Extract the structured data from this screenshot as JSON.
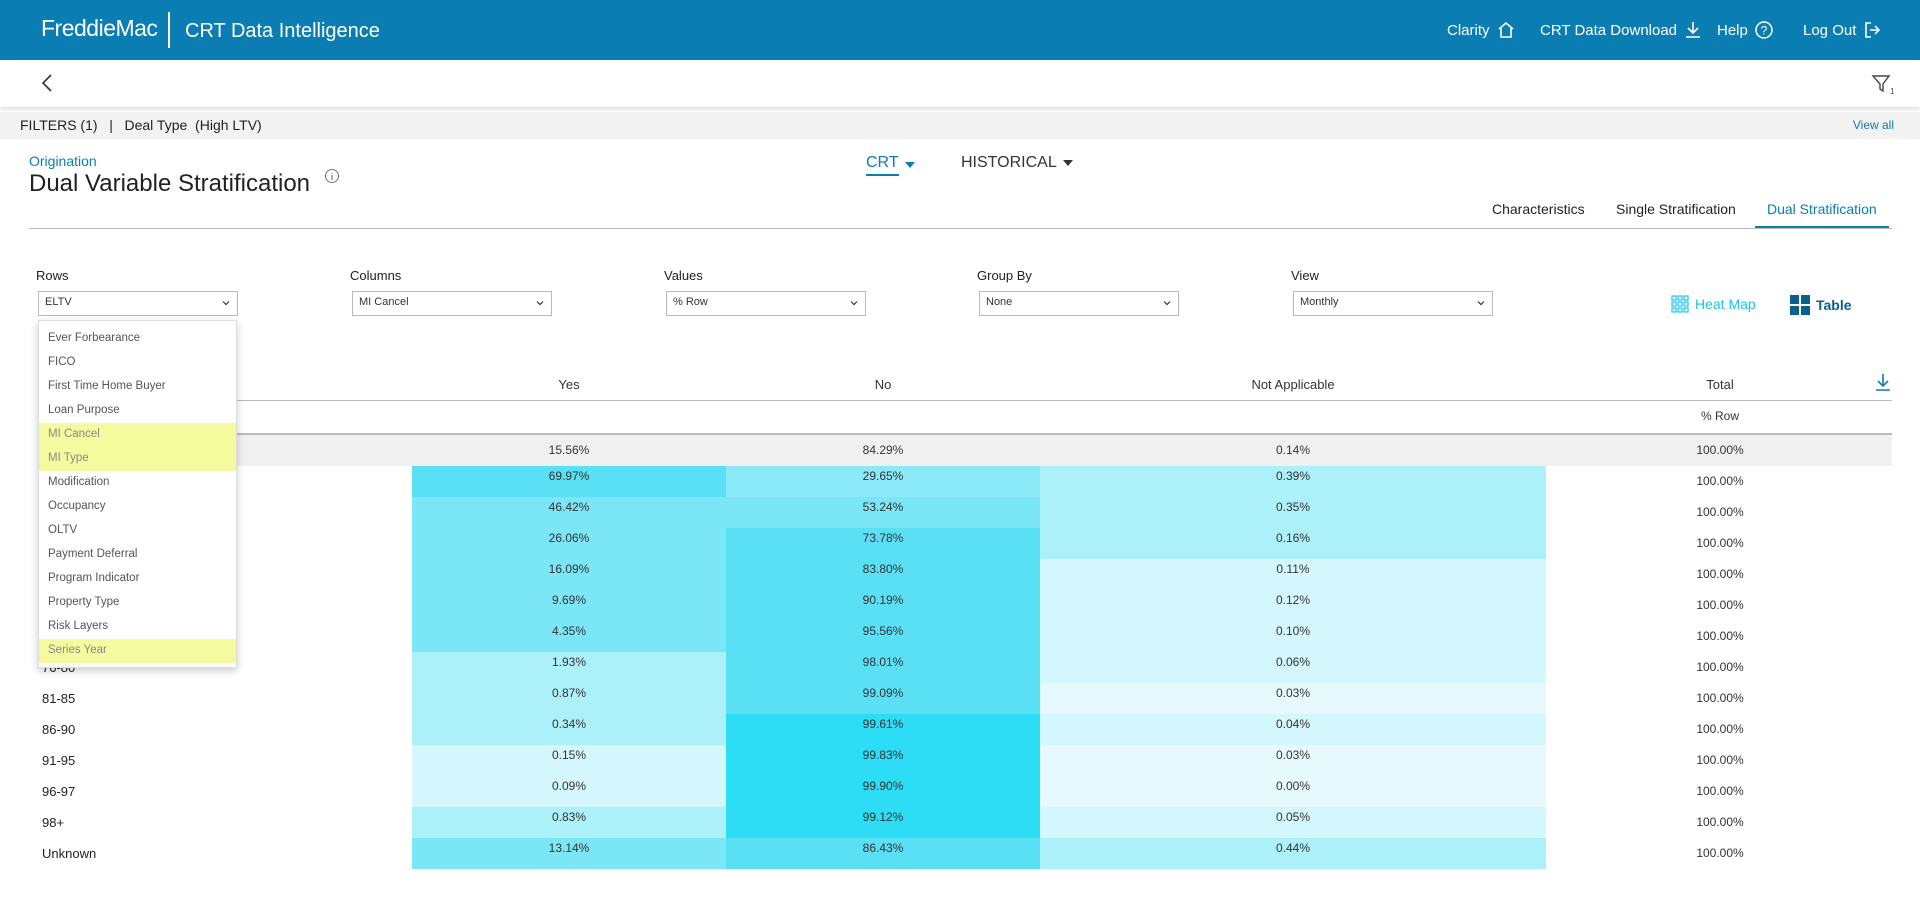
{
  "header": {
    "logo": "FreddieMac",
    "app_title": "CRT Data Intelligence",
    "nav": [
      {
        "label": "Clarity",
        "icon": "home-icon"
      },
      {
        "label": "CRT Data Download",
        "icon": "download-icon"
      },
      {
        "label": "Help",
        "icon": "help-icon"
      },
      {
        "label": "Log Out",
        "icon": "logout-icon"
      }
    ]
  },
  "filters": {
    "summary": "FILTERS (1)   |   Deal Type  (High LTV)",
    "view_all": "View all"
  },
  "page": {
    "breadcrumb": "Origination",
    "title": "Dual Variable Stratification",
    "toggle_crt": "CRT",
    "toggle_historical": "HISTORICAL",
    "tabs": [
      "Characteristics",
      "Single Stratification",
      "Dual Stratification"
    ],
    "active_tab": "Dual Stratification"
  },
  "controls": {
    "rows": {
      "label": "Rows",
      "value": "ELTV"
    },
    "columns": {
      "label": "Columns",
      "value": "MI Cancel"
    },
    "values": {
      "label": "Values",
      "value": "% Row"
    },
    "group_by": {
      "label": "Group By",
      "value": "None"
    },
    "view": {
      "label": "View",
      "value": "Monthly"
    },
    "heat_map_label": "Heat Map",
    "table_label": "Table"
  },
  "dropdown": {
    "items": [
      {
        "label": "Ever Forbearance",
        "highlight": false
      },
      {
        "label": "FICO",
        "highlight": false
      },
      {
        "label": "First Time Home Buyer",
        "highlight": false
      },
      {
        "label": "Loan Purpose",
        "highlight": false
      },
      {
        "label": "MI Cancel",
        "highlight": true
      },
      {
        "label": "MI Type",
        "highlight": true
      },
      {
        "label": "Modification",
        "highlight": false
      },
      {
        "label": "Occupancy",
        "highlight": false
      },
      {
        "label": "OLTV",
        "highlight": false
      },
      {
        "label": "Payment Deferral",
        "highlight": false
      },
      {
        "label": "Program Indicator",
        "highlight": false
      },
      {
        "label": "Property Type",
        "highlight": false
      },
      {
        "label": "Risk Layers",
        "highlight": false
      },
      {
        "label": "Series Year",
        "highlight": true
      }
    ]
  },
  "table": {
    "columns": [
      "Yes",
      "No",
      "Not Applicable",
      "Total"
    ],
    "subheader": "% Row",
    "total_row": {
      "label": "",
      "values": [
        "15.56%",
        "84.29%",
        "0.14%",
        "100.00%"
      ]
    },
    "rows": [
      {
        "label": "",
        "values": [
          "69.97%",
          "29.65%",
          "0.39%",
          "100.00%"
        ],
        "shades": [
          "#5ae0f4",
          "#8aeaf8",
          "#acf1fa"
        ]
      },
      {
        "label": "",
        "values": [
          "46.42%",
          "53.24%",
          "0.35%",
          "100.00%"
        ],
        "shades": [
          "#7be7f6",
          "#7be7f6",
          "#acf1fa"
        ]
      },
      {
        "label": "",
        "values": [
          "26.06%",
          "73.78%",
          "0.16%",
          "100.00%"
        ],
        "shades": [
          "#7be7f6",
          "#5ae0f4",
          "#acf1fa"
        ]
      },
      {
        "label": "",
        "values": [
          "16.09%",
          "83.80%",
          "0.11%",
          "100.00%"
        ],
        "shades": [
          "#7be7f6",
          "#5ae0f4",
          "#d3f7fc"
        ]
      },
      {
        "label": "",
        "values": [
          "9.69%",
          "90.19%",
          "0.12%",
          "100.00%"
        ],
        "shades": [
          "#7be7f6",
          "#5ae0f4",
          "#d3f7fc"
        ]
      },
      {
        "label": "",
        "values": [
          "4.35%",
          "95.56%",
          "0.10%",
          "100.00%"
        ],
        "shades": [
          "#7be7f6",
          "#5ae0f4",
          "#d3f7fc"
        ]
      },
      {
        "label": "76-80",
        "values": [
          "1.93%",
          "98.01%",
          "0.06%",
          "100.00%"
        ],
        "shades": [
          "#acf1fa",
          "#5ae0f4",
          "#d3f7fc"
        ]
      },
      {
        "label": "81-85",
        "values": [
          "0.87%",
          "99.09%",
          "0.03%",
          "100.00%"
        ],
        "shades": [
          "#acf1fa",
          "#5ae0f4",
          "#e6fafd"
        ]
      },
      {
        "label": "86-90",
        "values": [
          "0.34%",
          "99.61%",
          "0.04%",
          "100.00%"
        ],
        "shades": [
          "#acf1fa",
          "#2ddcf5",
          "#d3f7fc"
        ]
      },
      {
        "label": "91-95",
        "values": [
          "0.15%",
          "99.83%",
          "0.03%",
          "100.00%"
        ],
        "shades": [
          "#d3f7fc",
          "#2ddcf5",
          "#e6fafd"
        ]
      },
      {
        "label": "96-97",
        "values": [
          "0.09%",
          "99.90%",
          "0.00%",
          "100.00%"
        ],
        "shades": [
          "#d3f7fc",
          "#2ddcf5",
          "#e6fafd"
        ]
      },
      {
        "label": "98+",
        "values": [
          "0.83%",
          "99.12%",
          "0.05%",
          "100.00%"
        ],
        "shades": [
          "#acf1fa",
          "#2ddcf5",
          "#d3f7fc"
        ]
      },
      {
        "label": "Unknown",
        "values": [
          "13.14%",
          "86.43%",
          "0.44%",
          "100.00%"
        ],
        "shades": [
          "#7be7f6",
          "#5ae0f4",
          "#acf1fa"
        ]
      }
    ]
  },
  "colors": {
    "brand": "#0a7db3",
    "accent": "#1cc6e8",
    "highlight": "#f4fa9e"
  }
}
